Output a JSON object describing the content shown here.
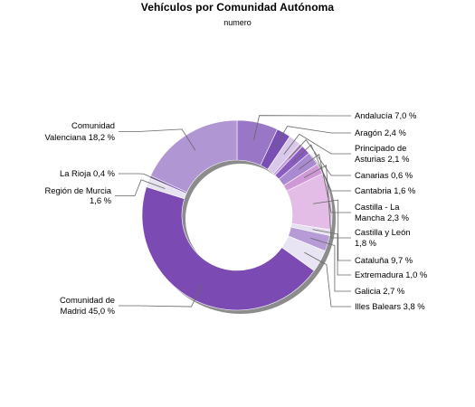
{
  "chart_data": {
    "type": "pie",
    "title": "Vehículos por Comunidad Autónoma",
    "subtitle": "numero",
    "slices": [
      {
        "name": "Andalucía",
        "label_lines": [
          "Andalucía 7,0 %"
        ],
        "value": 7.0,
        "color": "#9a77c6"
      },
      {
        "name": "Aragón",
        "label_lines": [
          "Aragón 2,4 %"
        ],
        "value": 2.4,
        "color": "#7a4fb3"
      },
      {
        "name": "Principado de Asturias",
        "label_lines": [
          "Principado de",
          "Asturias 2,1 %"
        ],
        "value": 2.1,
        "color": "#d9c8ea"
      },
      {
        "name": "Canarias",
        "label_lines": [
          "Canarias 0,6 %"
        ],
        "value": 0.6,
        "color": "#c09ad8"
      },
      {
        "name": "Cantabria",
        "label_lines": [
          "Cantabria 1,6 %"
        ],
        "value": 1.6,
        "color": "#8a5cbf"
      },
      {
        "name": "Castilla - La Mancha",
        "label_lines": [
          "Castilla - La",
          "Mancha 2,3 %"
        ],
        "value": 2.3,
        "color": "#a98ad0"
      },
      {
        "name": "Castilla y León",
        "label_lines": [
          "Castilla y León",
          "1,8 %"
        ],
        "value": 1.8,
        "color": "#cf98d6"
      },
      {
        "name": "Cataluña",
        "label_lines": [
          "Cataluña 9,7 %"
        ],
        "value": 9.7,
        "color": "#e3bde5"
      },
      {
        "name": "Extremadura",
        "label_lines": [
          "Extremadura 1,0 %"
        ],
        "value": 1.0,
        "color": "#e6dff0"
      },
      {
        "name": "Galicia",
        "label_lines": [
          "Galicia 2,7 %"
        ],
        "value": 2.7,
        "color": "#b79bd6"
      },
      {
        "name": "Illes Balears",
        "label_lines": [
          "Illes Balears 3,8 %"
        ],
        "value": 3.8,
        "color": "#e9e4f3"
      },
      {
        "name": "Comunidad de Madrid",
        "label_lines": [
          "Comunidad de",
          "Madrid 45,0 %"
        ],
        "value": 45.0,
        "color": "#7b4bb3"
      },
      {
        "name": "Región de Murcia",
        "label_lines": [
          "Región de Murcia",
          "1,6 %"
        ],
        "value": 1.6,
        "color": "#e7e3f0"
      },
      {
        "name": "La Rioja",
        "label_lines": [
          "La Rioja 0,4 %"
        ],
        "value": 0.4,
        "color": "#8a62be"
      },
      {
        "name": "Comunidad Valenciana",
        "label_lines": [
          "Comunidad",
          "Valenciana 18,2 %"
        ],
        "value": 18.2,
        "color": "#b196d4"
      }
    ],
    "start": "top",
    "direction": "clockwise",
    "donut": true,
    "legend": "none"
  }
}
